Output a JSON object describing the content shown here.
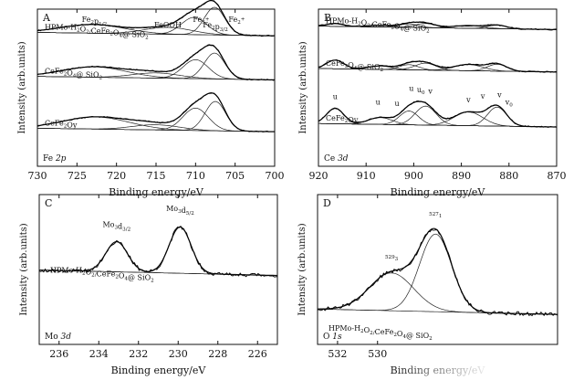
{
  "chart_data": [
    {
      "panel": "A",
      "type": "line",
      "xlabel": "Binding energy/eV",
      "ylabel": "Intensity (arb.units)",
      "xlim": [
        730,
        700
      ],
      "xticks": [
        730,
        725,
        720,
        715,
        710,
        705,
        700
      ],
      "corner_label": "Fe 2p",
      "peaks": [
        {
          "label": "Fe2p1/2",
          "x": 722.8
        },
        {
          "label": "FeOOH",
          "x": 713.5
        },
        {
          "label": "Fe3+",
          "x": 709.3
        },
        {
          "label": "Fe2p3/2",
          "x": 707.5
        },
        {
          "label": "Fe2+",
          "x": 704.8
        }
      ],
      "series": [
        {
          "name": "HPMo-H2O2/CeFe2O4@ SiO2",
          "center": 0.83,
          "components": [
            [
              723,
              4.0,
              0.25
            ],
            [
              713.5,
              3.0,
              0.2
            ],
            [
              710.2,
              1.6,
              0.5
            ],
            [
              707.6,
              1.3,
              0.8
            ]
          ]
        },
        {
          "name": "CeFe2O4@ SiO2",
          "center": 0.55,
          "components": [
            [
              722.8,
              4.0,
              0.3
            ],
            [
              715,
              3.0,
              0.15
            ],
            [
              710,
              1.6,
              0.55
            ],
            [
              707.6,
              1.3,
              0.75
            ]
          ]
        },
        {
          "name": "CeFe2Oy",
          "center": 0.22,
          "components": [
            [
              722.6,
              4.2,
              0.35
            ],
            [
              715,
              3.0,
              0.15
            ],
            [
              710,
              1.6,
              0.65
            ],
            [
              707.5,
              1.3,
              0.85
            ]
          ]
        }
      ]
    },
    {
      "panel": "B",
      "type": "line",
      "xlabel": "Binding energy/eV",
      "ylabel": "Intensity (arb.units)",
      "xlim": [
        920,
        870
      ],
      "xticks": [
        920,
        910,
        900,
        890,
        880,
        870
      ],
      "corner_label": "Ce 3d",
      "peak_labels": [
        {
          "label": "u'''",
          "x": 916.5
        },
        {
          "label": "u''",
          "x": 907.5
        },
        {
          "label": "u'",
          "x": 903.5
        },
        {
          "label": "u",
          "x": 900.5
        },
        {
          "label": "u0",
          "x": 898.5
        },
        {
          "label": "v'''",
          "x": 896.5
        },
        {
          "label": "v''",
          "x": 888.5
        },
        {
          "label": "v'",
          "x": 885.5
        },
        {
          "label": "v",
          "x": 882
        },
        {
          "label": "v0",
          "x": 880
        }
      ],
      "series": [
        {
          "name": "HPMo-H2O2/CeFe2O4@ SiO2",
          "center": 0.87,
          "components": [
            [
              916.5,
              1.8,
              0.08
            ],
            [
              907,
              2.5,
              0.05
            ],
            [
              901,
              2.0,
              0.1
            ],
            [
              897.5,
              2.2,
              0.12
            ],
            [
              888.5,
              3.0,
              0.08
            ],
            [
              882.5,
              2.0,
              0.1
            ]
          ]
        },
        {
          "name": "CeFe2O4@ SiO2",
          "center": 0.6,
          "components": [
            [
              916.5,
              1.8,
              0.25
            ],
            [
              907,
              2.5,
              0.1
            ],
            [
              901,
              2.0,
              0.15
            ],
            [
              897.5,
              2.2,
              0.2
            ],
            [
              888.5,
              3.0,
              0.18
            ],
            [
              882.5,
              2.0,
              0.2
            ]
          ]
        },
        {
          "name": "CeFe2Oy",
          "center": 0.25,
          "components": [
            [
              916.5,
              1.8,
              0.45
            ],
            [
              907,
              2.5,
              0.2
            ],
            [
              901,
              2.0,
              0.4
            ],
            [
              897.5,
              2.2,
              0.55
            ],
            [
              888.5,
              3.0,
              0.4
            ],
            [
              882.5,
              2.0,
              0.55
            ]
          ]
        }
      ]
    },
    {
      "panel": "C",
      "type": "line",
      "xlabel": "Binding energy/eV",
      "ylabel": "Intensity (arb.units)",
      "xlim": [
        237,
        225
      ],
      "xticks": [
        236,
        234,
        232,
        230,
        228,
        226
      ],
      "corner_label": "Mo 3d",
      "peaks": [
        {
          "label": "Mo3d3/2",
          "x": 233.1
        },
        {
          "label": "Mo3d5/2",
          "x": 229.9
        }
      ],
      "series": [
        {
          "name": "HPMo-H2O2/CeFe2O4@ SiO2",
          "center": 0.46,
          "components": [
            [
              233.1,
              0.55,
              0.28
            ],
            [
              229.9,
              0.55,
              0.43
            ]
          ]
        }
      ]
    },
    {
      "panel": "D",
      "type": "line",
      "xlabel": "Binding energy/eV",
      "ylabel": "Intensity (arb.units)",
      "xlim": [
        533,
        521
      ],
      "xticks": [
        532,
        530
      ],
      "corner_label": "O 1s",
      "peaks": [
        {
          "label": "529.3",
          "x": 529.3
        },
        {
          "label": "527.1",
          "x": 527.1
        }
      ],
      "series": [
        {
          "name": "HPMo-H2O2/CeFe2O4@ SiO2",
          "center": 0.2,
          "components": [
            [
              529.3,
              1.1,
              0.35
            ],
            [
              527.1,
              0.8,
              0.72
            ]
          ]
        }
      ]
    }
  ]
}
